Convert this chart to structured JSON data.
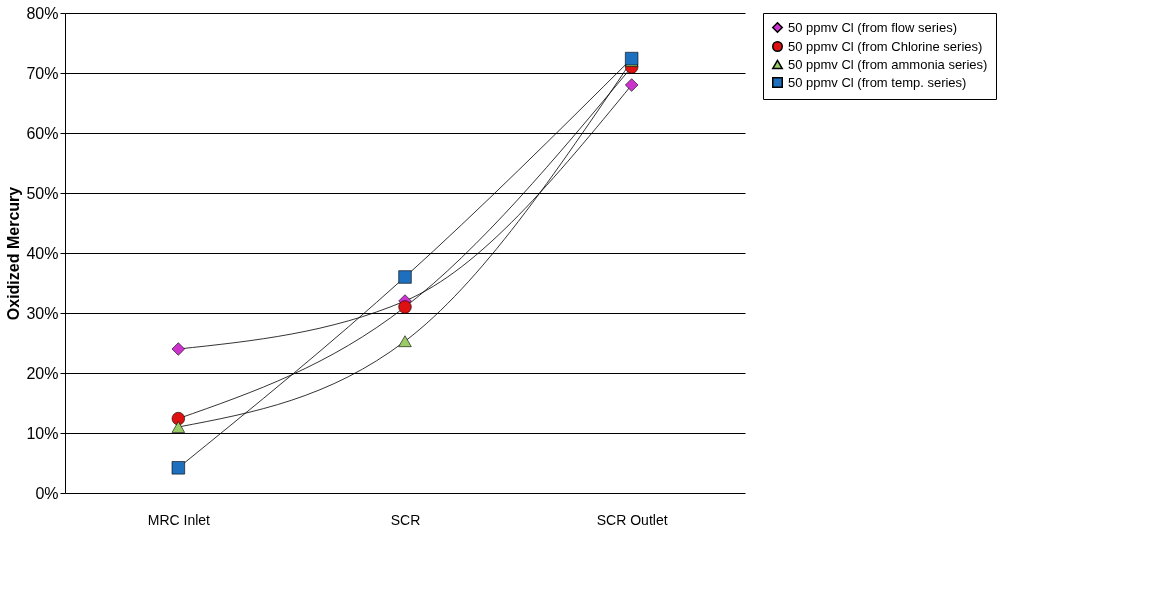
{
  "chart_data": {
    "type": "line",
    "ylabel": "Oxidized Mercury",
    "categories": [
      "MRC Inlet",
      "SCR",
      "SCR Outlet"
    ],
    "series": [
      {
        "name": "50 ppmv Cl (from flow series)",
        "color": "#cc33cc",
        "marker": "diamond",
        "values": [
          24,
          32,
          68
        ]
      },
      {
        "name": "50 ppmv Cl (from Chlorine series)",
        "color": "#dd1111",
        "marker": "circle",
        "values": [
          12.4,
          31,
          71
        ]
      },
      {
        "name": "50 ppmv Cl (from ammonia series)",
        "color": "#99cc66",
        "marker": "triangle",
        "values": [
          11,
          25.3,
          72
        ]
      },
      {
        "name": "50 ppmv Cl (from temp. series)",
        "color": "#1f6fbf",
        "marker": "square",
        "values": [
          4.2,
          36,
          72.4
        ]
      }
    ],
    "ylim": [
      0,
      80
    ],
    "yticks": [
      {
        "value": 0,
        "label": "0%"
      },
      {
        "value": 10,
        "label": "10%"
      },
      {
        "value": 20,
        "label": "20%"
      },
      {
        "value": 30,
        "label": "30%"
      },
      {
        "value": 40,
        "label": "40%"
      },
      {
        "value": 50,
        "label": "50%"
      },
      {
        "value": 60,
        "label": "60%"
      },
      {
        "value": 70,
        "label": "70%"
      },
      {
        "value": 80,
        "label": "80%"
      }
    ],
    "grid": "y",
    "legend": "right",
    "line_style": "solid"
  }
}
